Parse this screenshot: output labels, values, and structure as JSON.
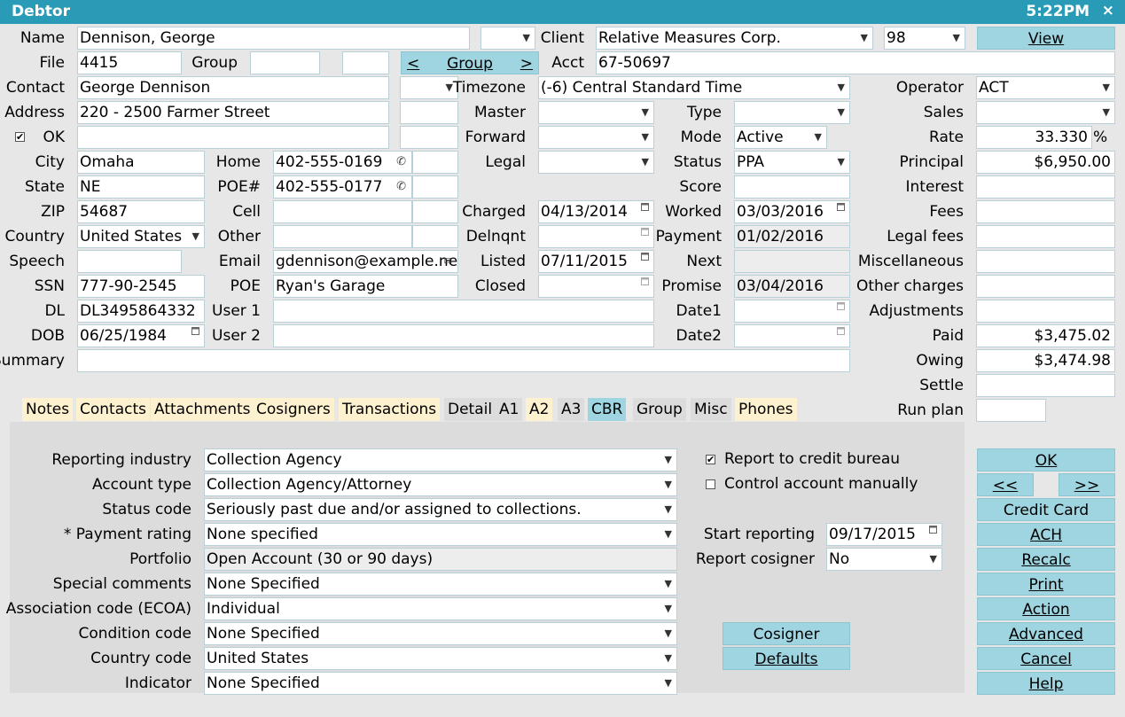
{
  "window": {
    "title": "Debtor",
    "clock": "5:22PM",
    "close": "×"
  },
  "debtor": {
    "name_label": "Name",
    "name": "Dennison, George",
    "file_label": "File",
    "file": "4415",
    "group_label": "Group",
    "group1": "",
    "group2": "",
    "group_nav": {
      "prev": "<",
      "label": "Group",
      "next": ">"
    },
    "contact_label": "Contact",
    "contact": "George Dennison",
    "address_label": "Address",
    "address": "220 - 2500 Farmer Street",
    "ok_label": "OK",
    "city_label": "City",
    "city": "Omaha",
    "state_label": "State",
    "state": "NE",
    "zip_label": "ZIP",
    "zip": "54687",
    "country_label": "Country",
    "country": "United States",
    "speech_label": "Speech",
    "speech": "",
    "ssn_label": "SSN",
    "ssn": "777-90-2545",
    "dl_label": "DL",
    "dl": "DL3495864332",
    "dob_label": "DOB",
    "dob": "06/25/1984",
    "summary_label": "Summary",
    "summary": "",
    "home_label": "Home",
    "home": "402-555-0169",
    "poe_num_label": "POE#",
    "poe_num": "402-555-0177",
    "cell_label": "Cell",
    "cell": "",
    "other_label": "Other",
    "other": "",
    "email_label": "Email",
    "email": "gdennison@example.net",
    "poe_label": "POE",
    "poe": "Ryan's Garage",
    "user1_label": "User 1",
    "user1": "",
    "user2_label": "User 2",
    "user2": ""
  },
  "account": {
    "client_label": "Client",
    "client": "Relative Measures Corp.",
    "client_code": "98",
    "view_button": "View",
    "acct_label": "Acct",
    "acct": "67-50697",
    "timezone_label": "Timezone",
    "timezone": "(-6) Central Standard Time",
    "master_label": "Master",
    "forward_label": "Forward",
    "legal_label": "Legal",
    "charged_label": "Charged",
    "charged": "04/13/2014",
    "delnqnt_label": "Delnqnt",
    "delnqnt": "",
    "listed_label": "Listed",
    "listed": "07/11/2015",
    "closed_label": "Closed",
    "closed": "",
    "type_label": "Type",
    "mode_label": "Mode",
    "mode": "Active",
    "status_label": "Status",
    "status": "PPA",
    "score_label": "Score",
    "score": "",
    "worked_label": "Worked",
    "worked": "03/03/2016",
    "payment_label": "Payment",
    "payment": "01/02/2016",
    "next_label": "Next",
    "next": "",
    "promise_label": "Promise",
    "promise": "03/04/2016",
    "date1_label": "Date1",
    "date2_label": "Date2"
  },
  "financials": {
    "operator_label": "Operator",
    "operator": "ACT",
    "sales_label": "Sales",
    "sales": "",
    "rate_label": "Rate",
    "rate": "33.330",
    "rate_unit": "%",
    "principal_label": "Principal",
    "principal": "$6,950.00",
    "interest_label": "Interest",
    "fees_label": "Fees",
    "legal_fees_label": "Legal fees",
    "misc_label": "Miscellaneous",
    "other_charges_label": "Other charges",
    "adjustments_label": "Adjustments",
    "paid_label": "Paid",
    "paid": "$3,475.02",
    "owing_label": "Owing",
    "owing": "$3,474.98",
    "settle_label": "Settle",
    "run_plan_label": "Run plan"
  },
  "tabs": [
    "Notes",
    "Contacts",
    "Attachments",
    "Cosigners",
    "Transactions",
    "Detail",
    "A1",
    "A2",
    "A3",
    "CBR",
    "Group",
    "Misc",
    "Phones"
  ],
  "cbr": {
    "rows": [
      {
        "label": "Reporting industry",
        "value": "Collection Agency"
      },
      {
        "label": "Account type",
        "value": "Collection Agency/Attorney"
      },
      {
        "label": "Status code",
        "value": "Seriously past due and/or assigned to collections."
      },
      {
        "label": "* Payment rating",
        "value": "None specified"
      },
      {
        "label": "Portfolio",
        "value": "Open Account (30 or 90 days)"
      },
      {
        "label": "Special comments",
        "value": "None Specified"
      },
      {
        "label": "Association code (ECOA)",
        "value": "Individual"
      },
      {
        "label": "Condition code",
        "value": "None Specified"
      },
      {
        "label": "Country code",
        "value": "United States"
      },
      {
        "label": "Indicator",
        "value": "None Specified"
      }
    ],
    "report_to_bureau": "Report to credit bureau",
    "control_manually": "Control account manually",
    "start_reporting_label": "Start reporting",
    "start_reporting": "09/17/2015",
    "report_cosigner_label": "Report cosigner",
    "report_cosigner": "No",
    "cosigner_button": "Cosigner",
    "defaults_button": "Defaults"
  },
  "side_buttons": {
    "ok": "OK",
    "prev": "<<",
    "next": ">>",
    "credit_card": "Credit Card",
    "ach": "ACH",
    "recalc": "Recalc",
    "print": "Print",
    "action": "Action",
    "advanced": "Advanced",
    "cancel": "Cancel",
    "help": "Help"
  }
}
